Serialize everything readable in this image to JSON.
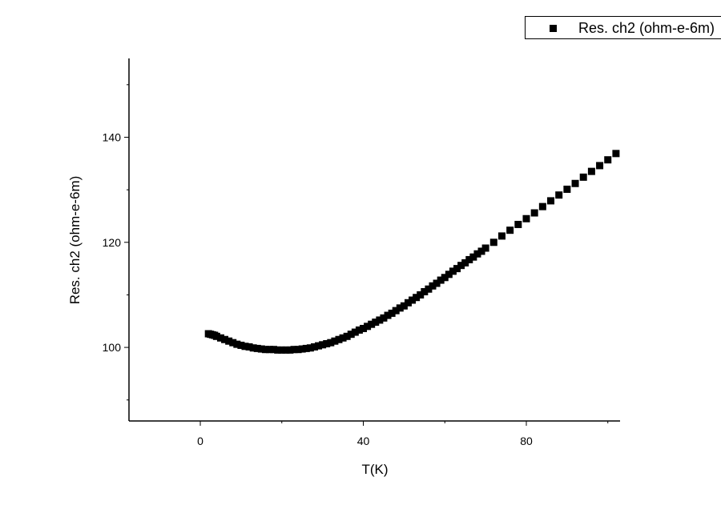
{
  "chart_data": {
    "type": "scatter",
    "title": "",
    "xlabel": "T(K)",
    "ylabel": "Res. ch2 (ohm-e-6m)",
    "xlim": [
      -17.5,
      103
    ],
    "ylim": [
      86,
      155
    ],
    "xticks": [
      0,
      40,
      80
    ],
    "yticks": [
      100,
      120,
      140
    ],
    "grid": false,
    "legend": {
      "placement": "top-right",
      "entries": [
        "Res. ch2 (ohm-e-6m)"
      ]
    },
    "marker": "square",
    "color": "#000000",
    "series": [
      {
        "name": "Res. ch2 (ohm-e-6m)",
        "x": [
          2,
          2.5,
          3,
          3.5,
          4,
          5,
          6,
          7,
          8,
          9,
          10,
          11,
          12,
          13,
          14,
          15,
          16,
          17,
          18,
          19,
          20,
          21,
          22,
          23,
          24,
          25,
          26,
          27,
          28,
          29,
          30,
          31,
          32,
          33,
          34,
          35,
          36,
          37,
          38,
          39,
          40,
          41,
          42,
          43,
          44,
          45,
          46,
          47,
          48,
          49,
          50,
          51,
          52,
          53,
          54,
          55,
          56,
          57,
          58,
          59,
          60,
          61,
          62,
          63,
          64,
          65,
          66,
          67,
          68,
          69,
          70,
          72,
          74,
          76,
          78,
          80,
          82,
          84,
          86,
          88,
          90,
          92,
          94,
          96,
          98,
          100,
          102
        ],
        "y": [
          102.6,
          102.5,
          102.4,
          102.3,
          102.1,
          101.8,
          101.5,
          101.2,
          100.9,
          100.6,
          100.4,
          100.2,
          100.1,
          99.9,
          99.8,
          99.7,
          99.6,
          99.6,
          99.6,
          99.5,
          99.5,
          99.5,
          99.5,
          99.6,
          99.6,
          99.7,
          99.8,
          99.9,
          100.1,
          100.3,
          100.5,
          100.7,
          100.9,
          101.2,
          101.5,
          101.8,
          102.1,
          102.5,
          102.9,
          103.3,
          103.6,
          104.0,
          104.4,
          104.8,
          105.2,
          105.6,
          106.1,
          106.5,
          107.0,
          107.5,
          107.9,
          108.5,
          109.0,
          109.5,
          110.0,
          110.6,
          111.1,
          111.7,
          112.2,
          112.8,
          113.3,
          113.9,
          114.5,
          115.0,
          115.6,
          116.1,
          116.7,
          117.2,
          117.8,
          118.3,
          118.9,
          120.0,
          121.2,
          122.3,
          123.4,
          124.5,
          125.6,
          126.8,
          127.9,
          129.0,
          130.1,
          131.2,
          132.4,
          133.5,
          134.6,
          135.7,
          136.9
        ]
      }
    ]
  }
}
